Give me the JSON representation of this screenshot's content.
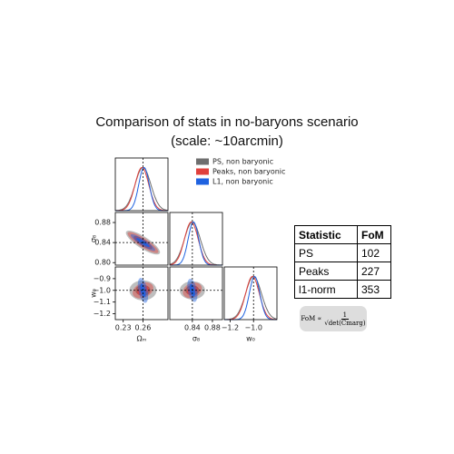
{
  "title": [
    "Comparison of stats in no-baryons scenario",
    "(scale: ~10arcmin)"
  ],
  "legend": [
    {
      "name": "PS, non baryonic",
      "color": "#6e6e6e"
    },
    {
      "name": "Peaks, non baryonic",
      "color": "#e0403c"
    },
    {
      "name": "L1, non baryonic",
      "color": "#1f62e0"
    }
  ],
  "parameters": [
    {
      "label": "Ωₘ",
      "lim": [
        0.218,
        0.298
      ],
      "fiducial": 0.26,
      "xticks": [
        0.23,
        0.26
      ],
      "yticks": []
    },
    {
      "label": "σ₈",
      "lim": [
        0.795,
        0.9
      ],
      "fiducial": 0.84,
      "xticks": [
        0.84,
        0.88
      ],
      "yticks": [
        {
          "value": 0.8,
          "label": "0.80"
        },
        0.84,
        0.88
      ]
    },
    {
      "label": "w₀",
      "lim": [
        -1.25,
        -0.8
      ],
      "fiducial": -1.0,
      "xticks": [
        {
          "value": -1.2,
          "label": "−1.2"
        },
        {
          "value": -1.0,
          "label": "−1.0"
        }
      ],
      "yticks": [
        {
          "value": -1.2,
          "label": "−1.2"
        },
        {
          "value": -1.1,
          "label": "−1.1"
        },
        {
          "value": -1.0,
          "label": "−1.0"
        },
        {
          "value": -0.9,
          "label": "−0.9"
        }
      ]
    }
  ],
  "table": {
    "header": [
      "Statistic",
      "FoM"
    ],
    "rows": [
      [
        "PS",
        102
      ],
      [
        "Peaks",
        227
      ],
      [
        "l1-norm",
        353
      ]
    ]
  },
  "formula": {
    "lhs": "FoM ∝",
    "numerator": "1",
    "denominator": "√det(Cmarg)"
  }
}
